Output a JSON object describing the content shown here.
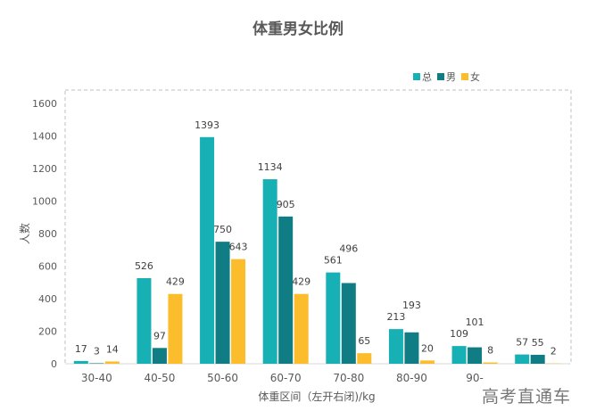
{
  "chart_data": {
    "type": "bar",
    "title": "体重男女比例",
    "xlabel": "体重区间（左开右闭)/kg",
    "ylabel": "人数",
    "ylim": [
      0,
      1600
    ],
    "yticks": [
      "0",
      "200",
      "400",
      "600",
      "800",
      "1000",
      "1200",
      "1400",
      "1600"
    ],
    "categories": [
      "30-40",
      "40-50",
      "50-60",
      "60-70",
      "70-80",
      "80-90",
      "90-",
      ""
    ],
    "series": [
      {
        "name": "总",
        "color": "#17b1b5",
        "values": [
          17,
          526,
          1393,
          1134,
          561,
          213,
          109,
          57
        ]
      },
      {
        "name": "男",
        "color": "#0f7d83",
        "values": [
          3,
          97,
          750,
          905,
          496,
          193,
          101,
          55
        ]
      },
      {
        "name": "女",
        "color": "#fbbd2c",
        "values": [
          14,
          429,
          643,
          429,
          65,
          20,
          8,
          2
        ]
      }
    ],
    "legend": "top-right",
    "grid": false
  },
  "watermark": "高考直通车"
}
